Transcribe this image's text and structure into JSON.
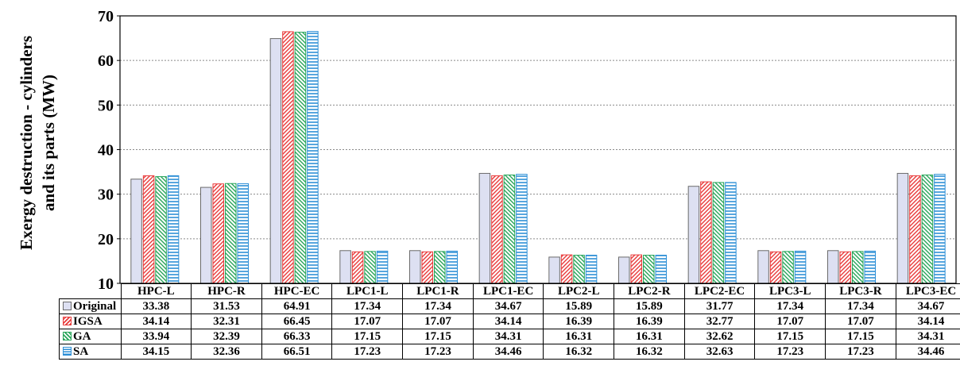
{
  "chart_data": {
    "type": "bar",
    "title": "",
    "xlabel": "",
    "ylabel": "Exergy destruction - cylinders and its parts (MW)",
    "ylabel_lines": [
      "Exergy destruction - cylinders",
      "and its parts (MW)"
    ],
    "ylim": [
      10,
      70
    ],
    "yticks": [
      10,
      20,
      30,
      40,
      50,
      60,
      70
    ],
    "grid": "horizontal dashed",
    "legend": "data table below chart",
    "categories": [
      "HPC-L",
      "HPC-R",
      "HPC-EC",
      "LPC1-L",
      "LPC1-R",
      "LPC1-EC",
      "LPC2-L",
      "LPC2-R",
      "LPC2-EC",
      "LPC3-L",
      "LPC3-R",
      "LPC3-EC"
    ],
    "series": [
      {
        "name": "Original",
        "color": "#dde0f2",
        "pattern": "solid",
        "values": [
          33.38,
          31.53,
          64.91,
          17.34,
          17.34,
          34.67,
          15.89,
          15.89,
          31.77,
          17.34,
          17.34,
          34.67
        ],
        "labels": [
          "33.38",
          "31.53",
          "64.91",
          "17.34",
          "17.34",
          "34.67",
          "15.89",
          "15.89",
          "31.77",
          "17.34",
          "17.34",
          "34.67"
        ]
      },
      {
        "name": "IGSA",
        "color": "#e83a3a",
        "pattern": "diagonal-up",
        "values": [
          34.14,
          32.31,
          66.45,
          17.07,
          17.07,
          34.14,
          16.39,
          16.39,
          32.77,
          17.07,
          17.07,
          34.14
        ],
        "labels": [
          "34.14",
          "32.31",
          "66.45",
          "17.07",
          "17.07",
          "34.14",
          "16.39",
          "16.39",
          "32.77",
          "17.07",
          "17.07",
          "34.14"
        ]
      },
      {
        "name": "GA",
        "color": "#27a559",
        "pattern": "diagonal-down",
        "values": [
          33.94,
          32.39,
          66.33,
          17.15,
          17.15,
          34.31,
          16.31,
          16.31,
          32.62,
          17.15,
          17.15,
          34.31
        ],
        "labels": [
          "33.94",
          "32.39",
          "66.33",
          "17.15",
          "17.15",
          "34.31",
          "16.31",
          "16.31",
          "32.62",
          "17.15",
          "17.15",
          "34.31"
        ]
      },
      {
        "name": "SA",
        "color": "#2d8fd6",
        "pattern": "horizontal",
        "values": [
          34.15,
          32.36,
          66.51,
          17.23,
          17.23,
          34.46,
          16.32,
          16.32,
          32.63,
          17.23,
          17.23,
          34.46
        ],
        "labels": [
          "34.15",
          "32.36",
          "66.51",
          "17.23",
          "17.23",
          "34.46",
          "16.32",
          "16.32",
          "32.63",
          "17.23",
          "17.23",
          "34.46"
        ]
      }
    ]
  }
}
